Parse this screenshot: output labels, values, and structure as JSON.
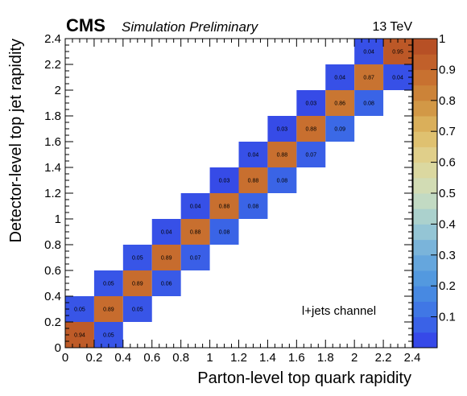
{
  "header": {
    "experiment": "CMS",
    "status": "Simulation Preliminary",
    "energy": "13 TeV"
  },
  "chart_data": {
    "type": "heatmap",
    "xlabel": "Parton-level top quark rapidity",
    "ylabel": "Detector-level top jet rapidity",
    "xlim": [
      0,
      2.4
    ],
    "ylim": [
      0,
      2.4
    ],
    "bin_width": 0.2,
    "x_ticks": [
      "0",
      "0.2",
      "0.4",
      "0.6",
      "0.8",
      "1",
      "1.2",
      "1.4",
      "1.6",
      "1.8",
      "2",
      "2.2",
      "2.4"
    ],
    "y_ticks": [
      "0",
      "0.2",
      "0.4",
      "0.6",
      "0.8",
      "1",
      "1.2",
      "1.4",
      "1.6",
      "1.8",
      "2",
      "2.2",
      "2.4"
    ],
    "z_range": [
      0,
      1
    ],
    "colorbar_ticks": [
      "0.1",
      "0.2",
      "0.3",
      "0.4",
      "0.5",
      "0.6",
      "0.7",
      "0.8",
      "0.9",
      "1"
    ],
    "annotation": "l+jets channel",
    "cells": [
      {
        "x": 0.1,
        "y": 0.1,
        "value": 0.94,
        "label": "0.94"
      },
      {
        "x": 0.1,
        "y": 0.3,
        "value": 0.05,
        "label": "0.05"
      },
      {
        "x": 0.3,
        "y": 0.1,
        "value": 0.05,
        "label": "0.05"
      },
      {
        "x": 0.3,
        "y": 0.3,
        "value": 0.89,
        "label": "0.89"
      },
      {
        "x": 0.3,
        "y": 0.5,
        "value": 0.05,
        "label": "0.05"
      },
      {
        "x": 0.5,
        "y": 0.3,
        "value": 0.05,
        "label": "0.05"
      },
      {
        "x": 0.5,
        "y": 0.5,
        "value": 0.89,
        "label": "0.89"
      },
      {
        "x": 0.5,
        "y": 0.7,
        "value": 0.05,
        "label": "0.05"
      },
      {
        "x": 0.7,
        "y": 0.5,
        "value": 0.06,
        "label": "0.06"
      },
      {
        "x": 0.7,
        "y": 0.7,
        "value": 0.89,
        "label": "0.89"
      },
      {
        "x": 0.7,
        "y": 0.9,
        "value": 0.04,
        "label": "0.04"
      },
      {
        "x": 0.9,
        "y": 0.7,
        "value": 0.07,
        "label": "0.07"
      },
      {
        "x": 0.9,
        "y": 0.9,
        "value": 0.88,
        "label": "0.88"
      },
      {
        "x": 0.9,
        "y": 1.1,
        "value": 0.04,
        "label": "0.04"
      },
      {
        "x": 1.1,
        "y": 0.9,
        "value": 0.08,
        "label": "0.08"
      },
      {
        "x": 1.1,
        "y": 1.1,
        "value": 0.88,
        "label": "0.88"
      },
      {
        "x": 1.1,
        "y": 1.3,
        "value": 0.03,
        "label": "0.03"
      },
      {
        "x": 1.3,
        "y": 1.1,
        "value": 0.08,
        "label": "0.08"
      },
      {
        "x": 1.3,
        "y": 1.3,
        "value": 0.88,
        "label": "0.88"
      },
      {
        "x": 1.3,
        "y": 1.5,
        "value": 0.04,
        "label": "0.04"
      },
      {
        "x": 1.5,
        "y": 1.3,
        "value": 0.08,
        "label": "0.08"
      },
      {
        "x": 1.5,
        "y": 1.5,
        "value": 0.88,
        "label": "0.88"
      },
      {
        "x": 1.5,
        "y": 1.7,
        "value": 0.03,
        "label": "0.03"
      },
      {
        "x": 1.7,
        "y": 1.5,
        "value": 0.07,
        "label": "0.07"
      },
      {
        "x": 1.7,
        "y": 1.7,
        "value": 0.88,
        "label": "0.88"
      },
      {
        "x": 1.7,
        "y": 1.9,
        "value": 0.03,
        "label": "0.03"
      },
      {
        "x": 1.9,
        "y": 1.7,
        "value": 0.09,
        "label": "0.09"
      },
      {
        "x": 1.9,
        "y": 1.9,
        "value": 0.86,
        "label": "0.86"
      },
      {
        "x": 1.9,
        "y": 2.1,
        "value": 0.04,
        "label": "0.04"
      },
      {
        "x": 2.1,
        "y": 1.9,
        "value": 0.08,
        "label": "0.08"
      },
      {
        "x": 2.1,
        "y": 2.1,
        "value": 0.87,
        "label": "0.87"
      },
      {
        "x": 2.1,
        "y": 2.3,
        "value": 0.04,
        "label": "0.04"
      },
      {
        "x": 2.3,
        "y": 2.1,
        "value": 0.04,
        "label": "0.04"
      },
      {
        "x": 2.3,
        "y": 2.3,
        "value": 0.95,
        "label": "0.95"
      }
    ]
  }
}
